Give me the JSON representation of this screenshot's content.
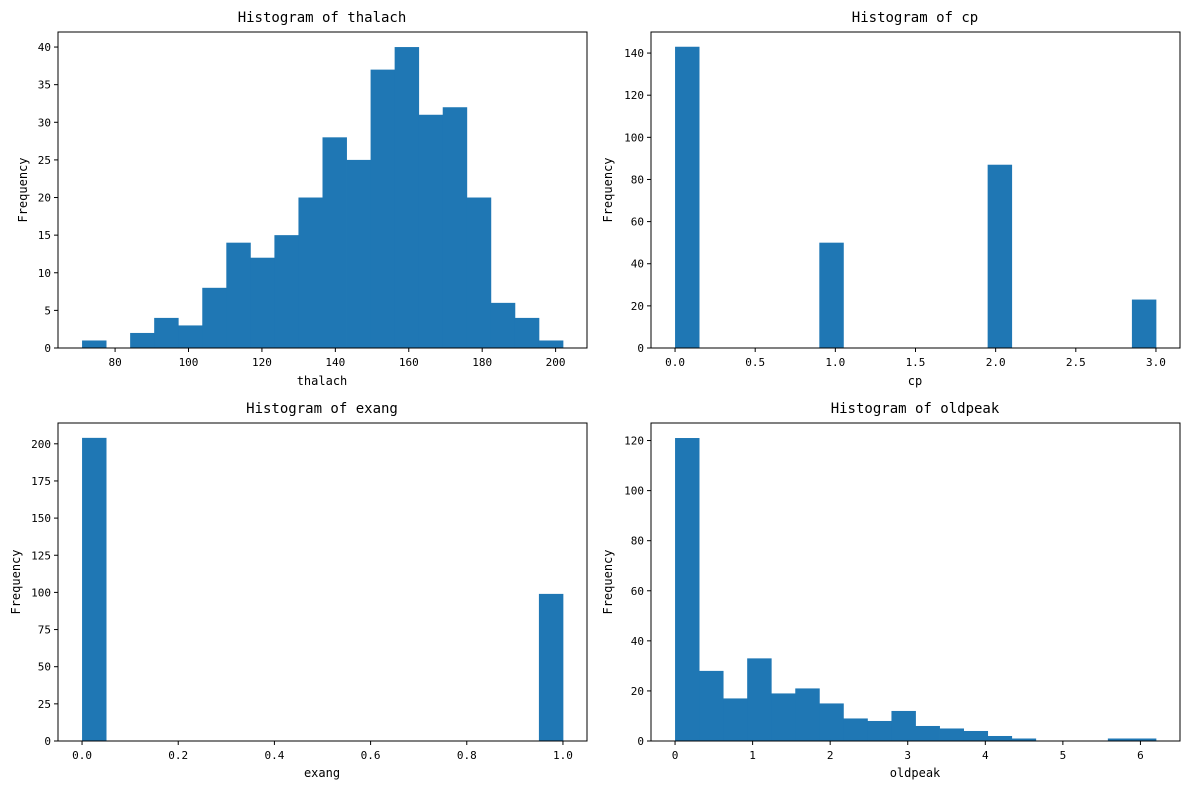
{
  "chart_data": [
    {
      "type": "bar",
      "title": "Histogram of thalach",
      "xlabel": "thalach",
      "ylabel": "Frequency",
      "bar_color": "#1f77b4",
      "bin_edges": [
        71.0,
        77.55,
        84.1,
        90.65,
        97.2,
        103.75,
        110.3,
        116.85,
        123.4,
        129.95,
        136.5,
        143.05,
        149.6,
        156.15,
        162.7,
        169.25,
        175.8,
        182.35,
        188.9,
        195.45,
        202.0
      ],
      "values": [
        1,
        0,
        2,
        4,
        3,
        8,
        14,
        12,
        15,
        20,
        28,
        25,
        37,
        40,
        31,
        32,
        20,
        6,
        4,
        1
      ],
      "xlim": [
        64.45,
        208.55
      ],
      "ylim": [
        0,
        42
      ],
      "xticks": [
        80,
        100,
        120,
        140,
        160,
        180,
        200
      ],
      "xtick_labels": [
        "80",
        "100",
        "120",
        "140",
        "160",
        "180",
        "200"
      ],
      "yticks": [
        0,
        5,
        10,
        15,
        20,
        25,
        30,
        35,
        40
      ],
      "ytick_labels": [
        "0",
        "5",
        "10",
        "15",
        "20",
        "25",
        "30",
        "35",
        "40"
      ],
      "grid": false
    },
    {
      "type": "bar",
      "title": "Histogram of cp",
      "xlabel": "cp",
      "ylabel": "Frequency",
      "bar_color": "#1f77b4",
      "bin_edges": [
        0.0,
        0.15,
        0.3,
        0.45,
        0.6,
        0.75,
        0.9,
        1.05,
        1.2,
        1.35,
        1.5,
        1.65,
        1.8,
        1.95,
        2.1,
        2.25,
        2.4,
        2.55,
        2.7,
        2.85,
        3.0
      ],
      "values": [
        143,
        0,
        0,
        0,
        0,
        0,
        50,
        0,
        0,
        0,
        0,
        0,
        0,
        87,
        0,
        0,
        0,
        0,
        0,
        23
      ],
      "xlim": [
        -0.15,
        3.15
      ],
      "ylim": [
        0,
        150
      ],
      "xticks": [
        0.0,
        0.5,
        1.0,
        1.5,
        2.0,
        2.5,
        3.0
      ],
      "xtick_labels": [
        "0.0",
        "0.5",
        "1.0",
        "1.5",
        "2.0",
        "2.5",
        "3.0"
      ],
      "yticks": [
        0,
        20,
        40,
        60,
        80,
        100,
        120,
        140
      ],
      "ytick_labels": [
        "0",
        "20",
        "40",
        "60",
        "80",
        "100",
        "120",
        "140"
      ],
      "grid": false
    },
    {
      "type": "bar",
      "title": "Histogram of exang",
      "xlabel": "exang",
      "ylabel": "Frequency",
      "bar_color": "#1f77b4",
      "bin_edges": [
        0.0,
        0.05,
        0.1,
        0.15,
        0.2,
        0.25,
        0.3,
        0.35,
        0.4,
        0.45,
        0.5,
        0.55,
        0.6,
        0.65,
        0.7,
        0.75,
        0.8,
        0.85,
        0.9,
        0.95,
        1.0
      ],
      "values": [
        204,
        0,
        0,
        0,
        0,
        0,
        0,
        0,
        0,
        0,
        0,
        0,
        0,
        0,
        0,
        0,
        0,
        0,
        0,
        99
      ],
      "xlim": [
        -0.05,
        1.05
      ],
      "ylim": [
        0,
        214
      ],
      "xticks": [
        0.0,
        0.2,
        0.4,
        0.6,
        0.8,
        1.0
      ],
      "xtick_labels": [
        "0.0",
        "0.2",
        "0.4",
        "0.6",
        "0.8",
        "1.0"
      ],
      "yticks": [
        0,
        25,
        50,
        75,
        100,
        125,
        150,
        175,
        200
      ],
      "ytick_labels": [
        "0",
        "25",
        "50",
        "75",
        "100",
        "125",
        "150",
        "175",
        "200"
      ],
      "grid": false
    },
    {
      "type": "bar",
      "title": "Histogram of oldpeak",
      "xlabel": "oldpeak",
      "ylabel": "Frequency",
      "bar_color": "#1f77b4",
      "bin_edges": [
        0.0,
        0.31,
        0.62,
        0.93,
        1.24,
        1.55,
        1.86,
        2.17,
        2.48,
        2.79,
        3.1,
        3.41,
        3.72,
        4.03,
        4.34,
        4.65,
        4.96,
        5.27,
        5.58,
        5.89,
        6.2
      ],
      "values": [
        121,
        28,
        17,
        33,
        19,
        21,
        15,
        9,
        8,
        12,
        6,
        5,
        4,
        2,
        1,
        0,
        0,
        0,
        1,
        1
      ],
      "xlim": [
        -0.31,
        6.51
      ],
      "ylim": [
        0,
        127
      ],
      "xticks": [
        0,
        1,
        2,
        3,
        4,
        5,
        6
      ],
      "xtick_labels": [
        "0",
        "1",
        "2",
        "3",
        "4",
        "5",
        "6"
      ],
      "yticks": [
        0,
        20,
        40,
        60,
        80,
        100,
        120
      ],
      "ytick_labels": [
        "0",
        "20",
        "40",
        "60",
        "80",
        "100",
        "120"
      ],
      "grid": false
    }
  ]
}
